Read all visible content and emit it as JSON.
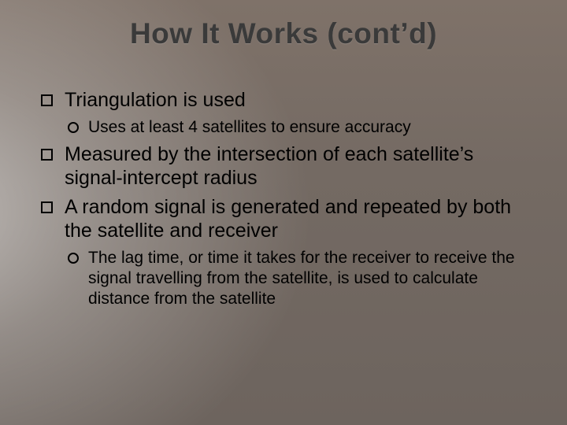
{
  "slide": {
    "title": "How It Works (cont’d)",
    "title_color": "#3a3a3a",
    "title_fontsize": 37,
    "title_font": "Trebuchet MS",
    "background": {
      "base_gradient": [
        "#7f7269",
        "#746a63",
        "#6d645e"
      ],
      "light_ray_center": "-100px 270px",
      "light_ray_color": "rgba(255,255,255,0.55)"
    },
    "body_fontsize_l1": 25,
    "body_fontsize_l2": 21,
    "bullet_l1_shape": "hollow-square",
    "bullet_l2_shape": "hollow-circle",
    "bullets": [
      {
        "text": "Triangulation is used",
        "sub": [
          {
            "text": "Uses at least 4 satellites to ensure accuracy"
          }
        ]
      },
      {
        "text": "Measured by the intersection of each satellite’s signal-intercept radius"
      },
      {
        "text": "A random signal is generated and repeated by both the satellite and receiver",
        "sub": [
          {
            "text": "The lag time, or time it takes for the receiver to receive the signal travelling from the satellite, is used to calculate distance from the satellite"
          }
        ]
      }
    ]
  }
}
